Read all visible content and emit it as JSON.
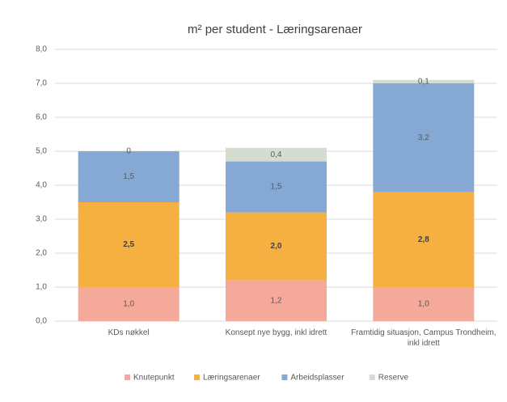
{
  "chart_data": {
    "type": "stacked_bar",
    "title": "m² per student - Læringsarenaer",
    "categories": [
      "KDs nøkkel",
      "Konsept nye bygg, inkl idrett",
      "Framtidig situasjon, Campus Trondheim, inkl idrett"
    ],
    "series": [
      {
        "name": "Knutepunkt",
        "color": "#f4a99a",
        "values": [
          1.0,
          1.2,
          1.0
        ],
        "value_labels": [
          "1,0",
          "1,2",
          "1,0"
        ]
      },
      {
        "name": "Læringsarenaer",
        "color": "#f6b042",
        "values": [
          2.5,
          2.0,
          2.8
        ],
        "value_labels": [
          "2,5",
          "2,0",
          "2,8"
        ]
      },
      {
        "name": "Arbeidsplasser",
        "color": "#86a8d4",
        "values": [
          1.5,
          1.5,
          3.2
        ],
        "value_labels": [
          "1,5",
          "1,5",
          "3,2"
        ]
      },
      {
        "name": "Reserve",
        "color": "#d5ddd0",
        "values": [
          0,
          0.4,
          0.1
        ],
        "value_labels": [
          "0",
          "0,4",
          "0,1"
        ]
      }
    ],
    "ylim": [
      0,
      8
    ],
    "yticks": [
      {
        "value": 0,
        "label": "0,0"
      },
      {
        "value": 1,
        "label": "1,0"
      },
      {
        "value": 2,
        "label": "2,0"
      },
      {
        "value": 3,
        "label": "3,0"
      },
      {
        "value": 4,
        "label": "4,0"
      },
      {
        "value": 5,
        "label": "5,0"
      },
      {
        "value": 6,
        "label": "6,0"
      },
      {
        "value": 7,
        "label": "7,0"
      },
      {
        "value": 8,
        "label": "8,0"
      }
    ],
    "grid": true
  }
}
